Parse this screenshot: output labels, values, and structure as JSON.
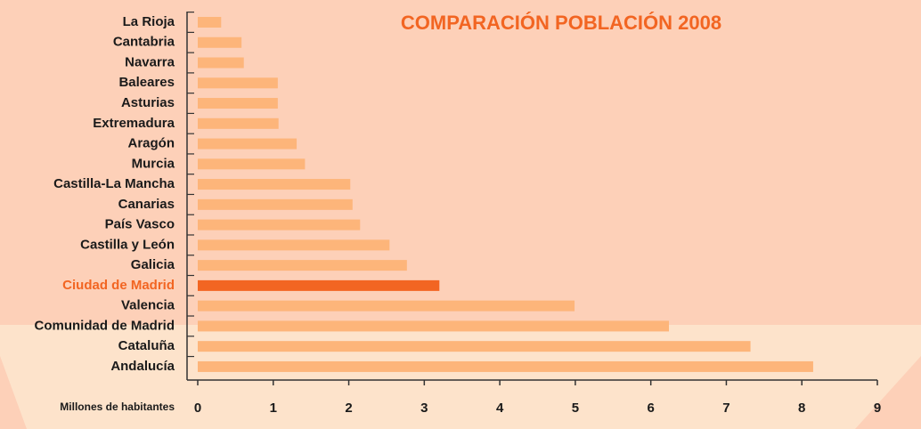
{
  "chart_data": {
    "type": "bar",
    "orientation": "horizontal",
    "title": "COMPARACIÓN POBLACIÓN 2008",
    "x_label": "Millones de habitantes",
    "categories": [
      "La Rioja",
      "Cantabria",
      "Navarra",
      "Baleares",
      "Asturias",
      "Extremadura",
      "Aragón",
      "Murcia",
      "Castilla-La Mancha",
      "Canarias",
      "País Vasco",
      "Castilla y León",
      "Galicia",
      "Ciudad de Madrid",
      "Valencia",
      "Comunidad de Madrid",
      "Cataluña",
      "Andalucía"
    ],
    "values": [
      0.31,
      0.58,
      0.61,
      1.06,
      1.06,
      1.07,
      1.31,
      1.42,
      2.02,
      2.05,
      2.15,
      2.54,
      2.77,
      3.2,
      4.99,
      6.24,
      7.32,
      8.15
    ],
    "colors": [
      "#fdb57a",
      "#fdb57a",
      "#fdb57a",
      "#fdb57a",
      "#fdb57a",
      "#fdb57a",
      "#fdb57a",
      "#fdb57a",
      "#fdb57a",
      "#fdb57a",
      "#fdb57a",
      "#fdb57a",
      "#fdb57a",
      "#f26522",
      "#fdb57a",
      "#fdb57a",
      "#fdb57a",
      "#fdb57a"
    ],
    "xlim": [
      0,
      9
    ],
    "xticks": [
      0,
      1,
      2,
      3,
      4,
      5,
      6,
      7,
      8,
      9
    ]
  }
}
